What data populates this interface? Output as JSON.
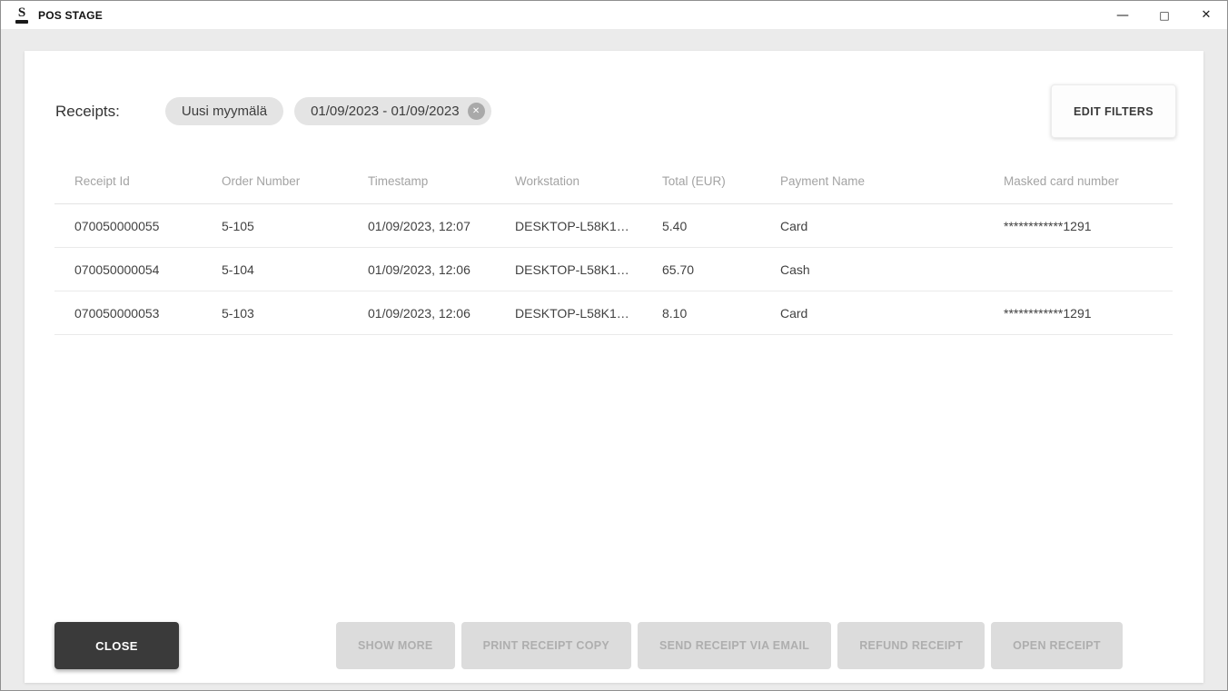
{
  "window": {
    "title": "POS STAGE"
  },
  "icons": {
    "app_logo_letter": "S",
    "minimize": "—",
    "maximize": "□",
    "close": "✕",
    "chip_remove": "✕"
  },
  "filters": {
    "label": "Receipts:",
    "chips": [
      {
        "label": "Uusi myymälä",
        "removable": false
      },
      {
        "label": "01/09/2023 - 01/09/2023",
        "removable": true
      }
    ],
    "edit_button_label": "EDIT FILTERS"
  },
  "table": {
    "columns": [
      "Receipt Id",
      "Order Number",
      "Timestamp",
      "Workstation",
      "Total (EUR)",
      "Payment Name",
      "Masked card number"
    ],
    "rows": [
      {
        "receipt_id": "070050000055",
        "order_number": "5-105",
        "timestamp": "01/09/2023, 12:07",
        "workstation": "DESKTOP-L58K1…",
        "total": "5.40",
        "payment": "Card",
        "masked_card": "************1291"
      },
      {
        "receipt_id": "070050000054",
        "order_number": "5-104",
        "timestamp": "01/09/2023, 12:06",
        "workstation": "DESKTOP-L58K1…",
        "total": "65.70",
        "payment": "Cash",
        "masked_card": ""
      },
      {
        "receipt_id": "070050000053",
        "order_number": "5-103",
        "timestamp": "01/09/2023, 12:06",
        "workstation": "DESKTOP-L58K1…",
        "total": "8.10",
        "payment": "Card",
        "masked_card": "************1291"
      }
    ]
  },
  "actions": {
    "close_label": "CLOSE",
    "disabled_buttons": [
      "SHOW MORE",
      "PRINT RECEIPT COPY",
      "SEND RECEIPT VIA EMAIL",
      "REFUND RECEIPT",
      "OPEN RECEIPT"
    ]
  },
  "colors": {
    "background": "#ebebeb",
    "card": "#ffffff",
    "chip_bg": "#e4e4e4",
    "chip_remove_bg": "#a9a9a9",
    "header_text": "#a3a3a3",
    "cell_text": "#414141",
    "close_button_bg": "#3a3a3a",
    "disabled_button_bg": "#dcdcdc",
    "disabled_button_text": "#aeaeae"
  }
}
